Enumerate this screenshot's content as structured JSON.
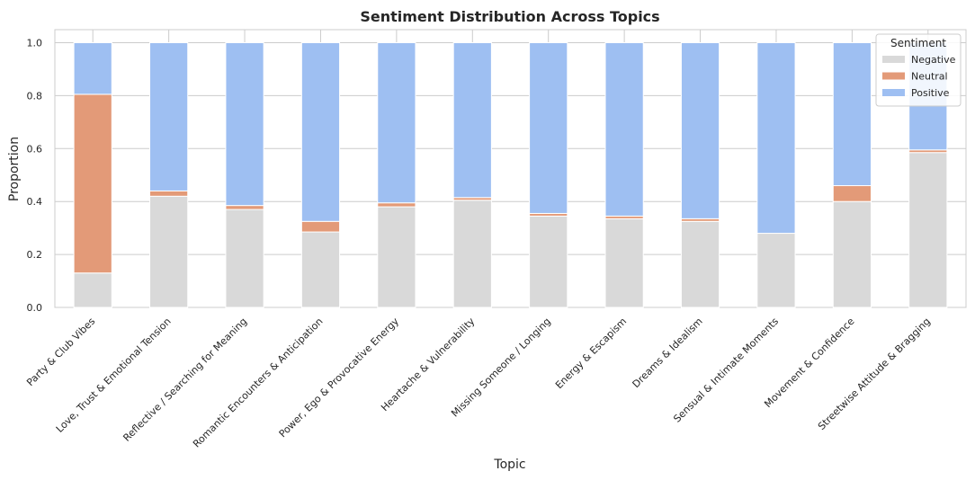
{
  "chart_data": {
    "type": "bar",
    "stacked": true,
    "title": "Sentiment Distribution Across Topics",
    "xlabel": "Topic",
    "ylabel": "Proportion",
    "ylim": [
      0,
      1.0
    ],
    "yticks": [
      "0.0",
      "0.2",
      "0.4",
      "0.6",
      "0.8",
      "1.0"
    ],
    "grid": true,
    "legend": {
      "title": "Sentiment",
      "placement": "top-right"
    },
    "categories": [
      "Party & Club Vibes",
      "Love, Trust & Emotional Tension",
      "Reflective / Searching for Meaning",
      "Romantic Encounters & Anticipation",
      "Power, Ego & Provocative Energy",
      "Heartache & Vulnerability",
      "Missing Someone / Longing",
      "Energy & Escapism",
      "Dreams & Idealism",
      "Sensual & Intimate Moments",
      "Movement & Confidence",
      "Streetwise Attitude & Bragging"
    ],
    "series": [
      {
        "name": "Negative",
        "color": "#d9d9d9",
        "values": [
          0.13,
          0.42,
          0.37,
          0.285,
          0.38,
          0.405,
          0.345,
          0.335,
          0.325,
          0.28,
          0.4,
          0.585
        ]
      },
      {
        "name": "Neutral",
        "color": "#e39a78",
        "values": [
          0.675,
          0.02,
          0.015,
          0.04,
          0.015,
          0.01,
          0.01,
          0.01,
          0.01,
          0.0,
          0.06,
          0.01
        ]
      },
      {
        "name": "Positive",
        "color": "#9ebff2",
        "values": [
          0.195,
          0.56,
          0.615,
          0.675,
          0.605,
          0.585,
          0.645,
          0.655,
          0.665,
          0.72,
          0.54,
          0.405
        ]
      }
    ]
  }
}
